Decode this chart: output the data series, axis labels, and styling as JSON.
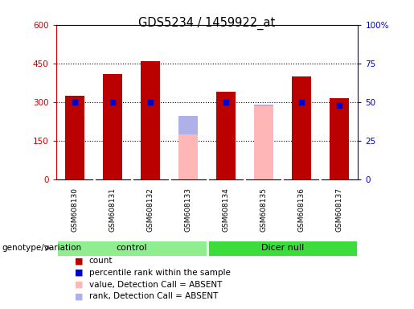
{
  "title": "GDS5234 / 1459922_at",
  "samples": [
    "GSM608130",
    "GSM608131",
    "GSM608132",
    "GSM608133",
    "GSM608134",
    "GSM608135",
    "GSM608136",
    "GSM608137"
  ],
  "count_values": [
    325,
    410,
    460,
    null,
    340,
    null,
    400,
    315
  ],
  "rank_values": [
    50,
    50,
    50,
    null,
    50,
    null,
    50,
    48
  ],
  "absent_value": [
    null,
    null,
    null,
    175,
    null,
    285,
    null,
    null
  ],
  "absent_rank_left": [
    null,
    null,
    null,
    245,
    null,
    290,
    null,
    null
  ],
  "groups": [
    {
      "label": "control",
      "samples": [
        0,
        1,
        2,
        3
      ],
      "color": "#90ee90"
    },
    {
      "label": "Dicer null",
      "samples": [
        4,
        5,
        6,
        7
      ],
      "color": "#3ddc3d"
    }
  ],
  "group_label": "genotype/variation",
  "ylim_left": [
    0,
    600
  ],
  "ylim_right": [
    0,
    100
  ],
  "yticks_left": [
    0,
    150,
    300,
    450,
    600
  ],
  "yticks_left_labels": [
    "0",
    "150",
    "300",
    "450",
    "600"
  ],
  "yticks_right": [
    0,
    25,
    50,
    75,
    100
  ],
  "yticks_right_labels": [
    "0",
    "25",
    "50",
    "75",
    "100%"
  ],
  "left_axis_color": "#cc0000",
  "right_axis_color": "#0000cc",
  "bar_width": 0.5,
  "count_color": "#bb0000",
  "rank_color": "#0000cc",
  "absent_value_color": "#ffb6b6",
  "absent_rank_color": "#b0b0e8",
  "bg_plot": "#ffffff",
  "bg_xticklabels": "#cccccc",
  "legend_items": [
    {
      "color": "#bb0000",
      "label": "count"
    },
    {
      "color": "#0000cc",
      "label": "percentile rank within the sample"
    },
    {
      "color": "#ffb6b6",
      "label": "value, Detection Call = ABSENT"
    },
    {
      "color": "#b0b0e8",
      "label": "rank, Detection Call = ABSENT"
    }
  ]
}
